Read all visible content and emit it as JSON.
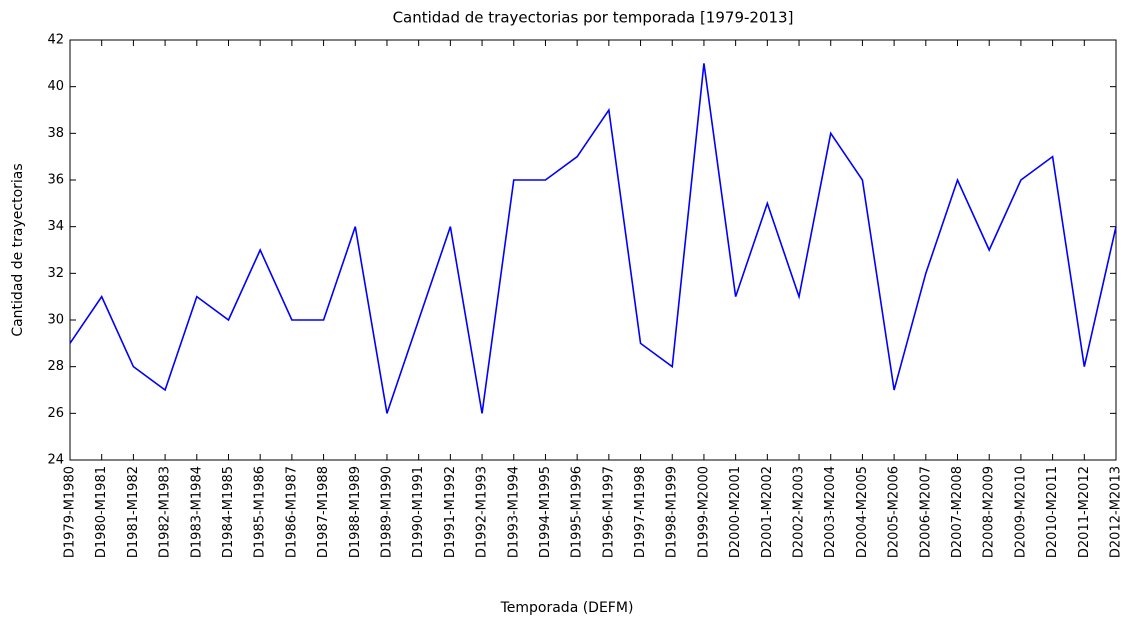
{
  "chart_data": {
    "type": "line",
    "title": "Cantidad de trayectorias por temporada [1979-2013]",
    "xlabel": "Temporada (DEFM)",
    "ylabel": "Cantidad de trayectorias",
    "categories": [
      "D1979-M1980",
      "D1980-M1981",
      "D1981-M1982",
      "D1982-M1983",
      "D1983-M1984",
      "D1984-M1985",
      "D1985-M1986",
      "D1986-M1987",
      "D1987-M1988",
      "D1988-M1989",
      "D1989-M1990",
      "D1990-M1991",
      "D1991-M1992",
      "D1992-M1993",
      "D1993-M1994",
      "D1994-M1995",
      "D1995-M1996",
      "D1996-M1997",
      "D1997-M1998",
      "D1998-M1999",
      "D1999-M2000",
      "D2000-M2001",
      "D2001-M2002",
      "D2002-M2003",
      "D2003-M2004",
      "D2004-M2005",
      "D2005-M2006",
      "D2006-M2007",
      "D2007-M2008",
      "D2008-M2009",
      "D2009-M2010",
      "D2010-M2011",
      "D2011-M2012",
      "D2012-M2013"
    ],
    "category_colors": [
      "#ff0000",
      "#000000",
      "#000000",
      "#ff0000",
      "#0000ff",
      "#0000ff",
      "#000000",
      "#ff0000",
      "#ff0000",
      "#0000ff",
      "#000000",
      "#000000",
      "#ff0000",
      "#000000",
      "#000000",
      "#ff0000",
      "#0000ff",
      "#000000",
      "#ff0000",
      "#0000ff",
      "#0000ff",
      "#0000ff",
      "#000000",
      "#ff0000",
      "#000000",
      "#ff0000",
      "#0000ff",
      "#ff0000",
      "#0000ff",
      "#0000ff",
      "#ff0000",
      "#0000ff",
      "#0000ff",
      "#000000"
    ],
    "values": [
      29,
      31,
      28,
      27,
      31,
      30,
      33,
      30,
      30,
      34,
      26,
      30,
      34,
      26,
      36,
      36,
      37,
      39,
      29,
      28,
      41,
      31,
      35,
      31,
      38,
      36,
      27,
      32,
      36,
      33,
      36,
      37,
      28,
      34
    ],
    "color": "#0000ff",
    "ylim": [
      24,
      42
    ],
    "yticks": [
      24,
      26,
      28,
      30,
      32,
      34,
      36,
      38,
      40,
      42
    ],
    "grid": false
  }
}
